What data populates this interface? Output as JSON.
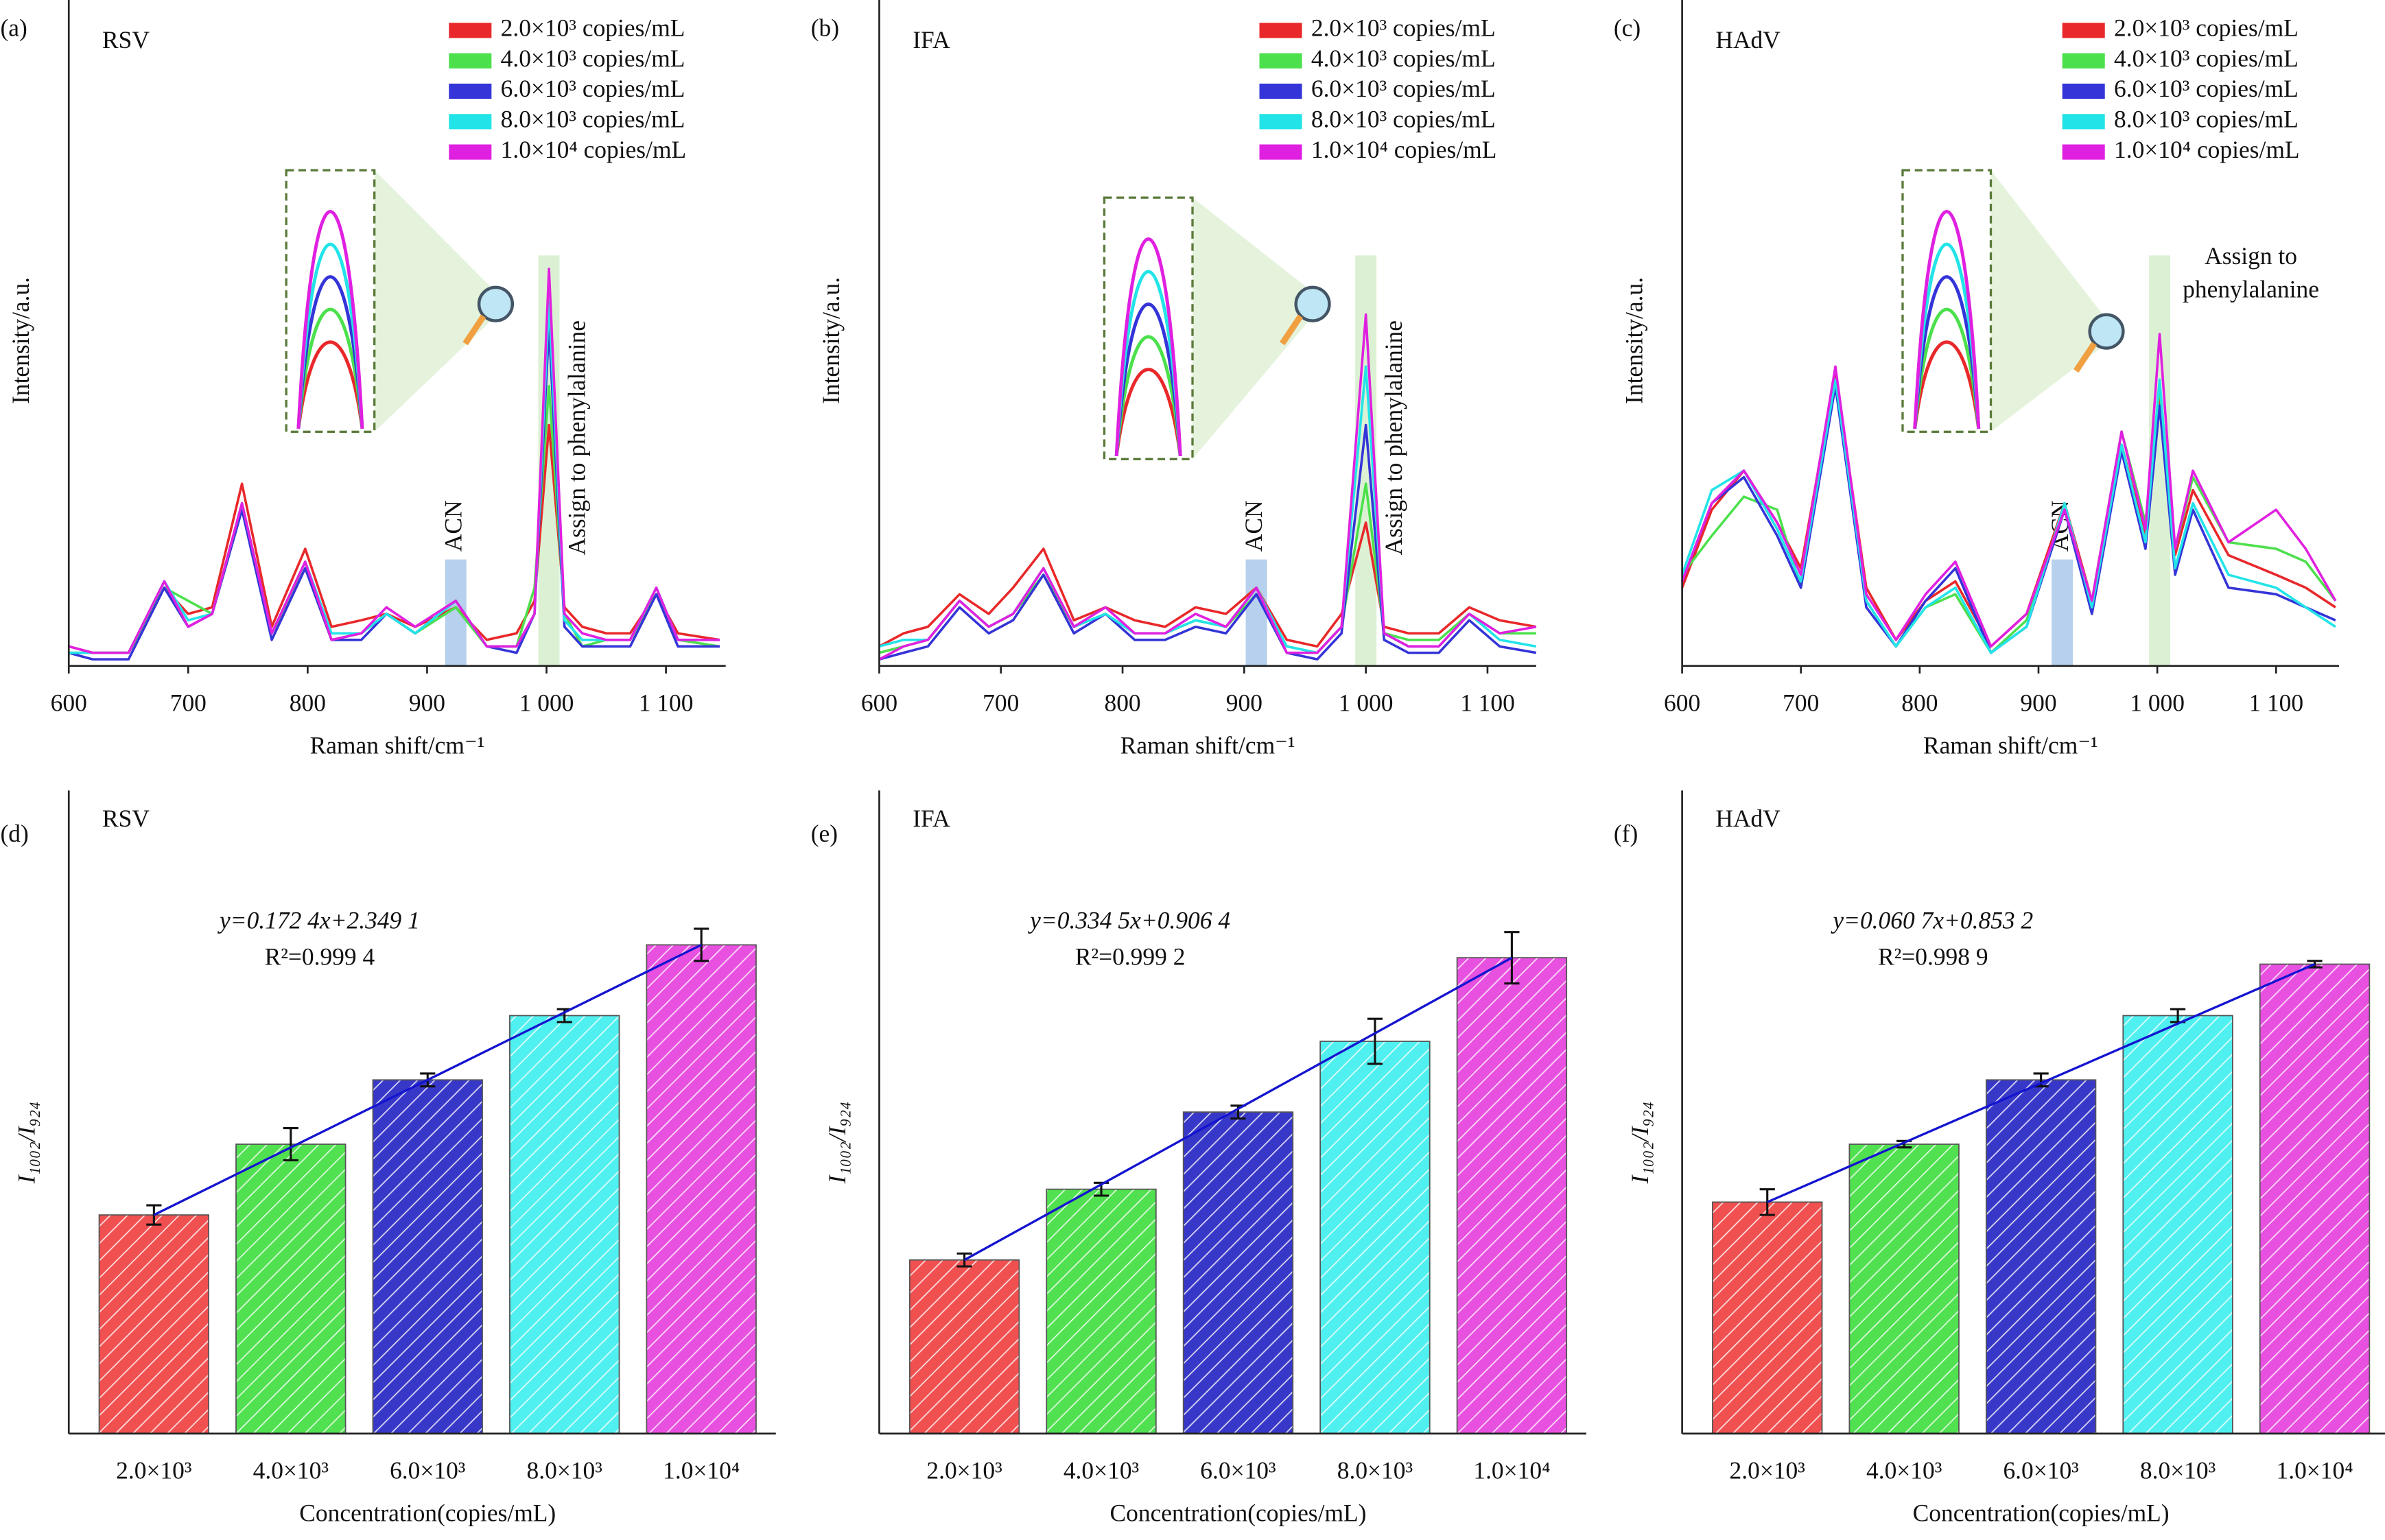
{
  "chart_data": [
    {
      "type": "line",
      "panel": "(a)",
      "title": "RSV",
      "xlabel": "Raman shift/cm⁻¹",
      "ylabel": "Intensity/a.u.",
      "xlim": [
        600,
        1150
      ],
      "xticks": [
        600,
        700,
        800,
        900,
        {
          "value": 1000,
          "label": "1 000"
        },
        {
          "value": 1100,
          "label": "1 100"
        }
      ],
      "ylim": [
        0,
        100
      ],
      "legend": "upper right",
      "annotations": [
        {
          "text": "ACN",
          "x": 924
        },
        {
          "text": "Assign to phenylalanine",
          "x": 1002
        }
      ],
      "x": [
        600,
        620,
        650,
        680,
        700,
        720,
        745,
        770,
        798,
        820,
        845,
        866,
        890,
        924,
        950,
        975,
        990,
        1002,
        1015,
        1030,
        1050,
        1070,
        1092,
        1110,
        1145
      ],
      "series": [
        {
          "name": "2.0×10³ copies/mL",
          "color": "#e8282a",
          "values": [
            3,
            2,
            2,
            12,
            8,
            9,
            28,
            6,
            18,
            6,
            7,
            8,
            6,
            9,
            4,
            5,
            10,
            37,
            9,
            6,
            5,
            5,
            11,
            5,
            4
          ]
        },
        {
          "name": "4.0×10³ copies/mL",
          "color": "#4ce04c",
          "values": [
            2,
            2,
            2,
            12,
            10,
            8,
            24,
            5,
            15,
            4,
            5,
            8,
            5,
            9,
            3,
            3,
            12,
            43,
            8,
            3,
            4,
            4,
            11,
            4,
            3
          ]
        },
        {
          "name": "6.0×10³ copies/mL",
          "color": "#3434d8",
          "values": [
            2,
            1,
            1,
            12,
            6,
            8,
            24,
            4,
            15,
            4,
            4,
            8,
            5,
            10,
            3,
            2,
            8,
            52,
            6,
            3,
            3,
            3,
            11,
            3,
            3
          ]
        },
        {
          "name": "8.0×10³ copies/mL",
          "color": "#22e4e8",
          "values": [
            2,
            2,
            2,
            13,
            7,
            8,
            25,
            5,
            16,
            5,
            5,
            8,
            5,
            10,
            3,
            3,
            8,
            56,
            7,
            4,
            4,
            4,
            12,
            4,
            4
          ]
        },
        {
          "name": "1.0×10⁴ copies/mL",
          "color": "#e020e0",
          "values": [
            3,
            2,
            2,
            13,
            6,
            8,
            25,
            5,
            16,
            4,
            5,
            9,
            6,
            10,
            3,
            3,
            8,
            61,
            8,
            5,
            4,
            4,
            12,
            4,
            4
          ]
        }
      ]
    },
    {
      "type": "line",
      "panel": "(b)",
      "title": "IFA",
      "xlabel": "Raman shift/cm⁻¹",
      "ylabel": "Intensity/a.u.",
      "xlim": [
        600,
        1140
      ],
      "xticks": [
        600,
        700,
        800,
        900,
        {
          "value": 1000,
          "label": "1 000"
        },
        {
          "value": 1100,
          "label": "1 100"
        }
      ],
      "ylim": [
        0,
        100
      ],
      "legend": "upper right",
      "annotations": [
        {
          "text": "ACN",
          "x": 910
        },
        {
          "text": "Assign to phenylalanine",
          "x": 1000
        }
      ],
      "x": [
        600,
        620,
        640,
        666,
        690,
        710,
        735,
        760,
        786,
        810,
        835,
        860,
        885,
        910,
        935,
        960,
        980,
        1000,
        1015,
        1035,
        1060,
        1085,
        1110,
        1140
      ],
      "series": [
        {
          "name": "2.0×10³ copies/mL",
          "color": "#e8282a",
          "values": [
            3,
            5,
            6,
            11,
            8,
            12,
            18,
            7,
            9,
            7,
            6,
            9,
            8,
            12,
            4,
            3,
            8,
            22,
            6,
            5,
            5,
            9,
            7,
            6
          ]
        },
        {
          "name": "4.0×10³ copies/mL",
          "color": "#4ce04c",
          "values": [
            2,
            3,
            4,
            10,
            6,
            8,
            14,
            6,
            8,
            5,
            5,
            7,
            6,
            11,
            3,
            2,
            6,
            28,
            5,
            4,
            4,
            8,
            5,
            5
          ]
        },
        {
          "name": "6.0×10³ copies/mL",
          "color": "#3434d8",
          "values": [
            1,
            2,
            3,
            9,
            5,
            7,
            14,
            5,
            8,
            4,
            4,
            6,
            5,
            11,
            2,
            1,
            5,
            37,
            4,
            2,
            2,
            7,
            3,
            2
          ]
        },
        {
          "name": "8.0×10³ copies/mL",
          "color": "#22e4e8",
          "values": [
            3,
            4,
            4,
            10,
            6,
            8,
            15,
            6,
            8,
            5,
            5,
            7,
            6,
            12,
            3,
            2,
            6,
            46,
            5,
            3,
            3,
            8,
            4,
            3
          ]
        },
        {
          "name": "1.0×10⁴ copies/mL",
          "color": "#e020e0",
          "values": [
            1,
            3,
            4,
            10,
            6,
            8,
            15,
            6,
            9,
            5,
            5,
            8,
            6,
            12,
            2,
            2,
            6,
            54,
            5,
            3,
            3,
            8,
            5,
            6
          ]
        }
      ]
    },
    {
      "type": "line",
      "panel": "(c)",
      "title": "HAdV",
      "xlabel": "Raman shift/cm⁻¹",
      "ylabel": "Intensity/a.u.",
      "xlim": [
        600,
        1153
      ],
      "xticks": [
        600,
        700,
        800,
        900,
        {
          "value": 1000,
          "label": "1 000"
        },
        {
          "value": 1100,
          "label": "1 100"
        }
      ],
      "ylim": [
        0,
        100
      ],
      "legend": "upper right",
      "annotations": [
        {
          "text": "ACN",
          "x": 920
        },
        {
          "text": [
            "Assign to",
            "phenylalanine"
          ],
          "x": 1002
        }
      ],
      "x": [
        600,
        625,
        652,
        680,
        700,
        729,
        755,
        780,
        805,
        830,
        860,
        890,
        922,
        945,
        970,
        990,
        1002,
        1015,
        1030,
        1060,
        1100,
        1125,
        1150
      ],
      "series": [
        {
          "name": "2.0×10³ copies/mL",
          "color": "#e8282a",
          "values": [
            12,
            24,
            30,
            22,
            15,
            45,
            12,
            4,
            10,
            13,
            3,
            8,
            25,
            10,
            34,
            20,
            42,
            17,
            27,
            17,
            14,
            12,
            9
          ]
        },
        {
          "name": "4.0×10³ copies/mL",
          "color": "#4ce04c",
          "values": [
            14,
            20,
            26,
            24,
            12,
            44,
            10,
            3,
            9,
            11,
            2,
            7,
            24,
            10,
            36,
            22,
            43,
            18,
            29,
            19,
            18,
            16,
            10
          ]
        },
        {
          "name": "6.0×10³ copies/mL",
          "color": "#3434d8",
          "values": [
            13,
            25,
            29,
            20,
            12,
            43,
            9,
            3,
            10,
            15,
            2,
            6,
            24,
            8,
            33,
            18,
            40,
            14,
            24,
            12,
            11,
            9,
            7
          ]
        },
        {
          "name": "8.0×10³ copies/mL",
          "color": "#22e4e8",
          "values": [
            14,
            27,
            30,
            21,
            13,
            44,
            10,
            3,
            9,
            12,
            2,
            6,
            25,
            9,
            34,
            19,
            44,
            15,
            25,
            14,
            12,
            9,
            6
          ]
        },
        {
          "name": "1.0×10⁴ copies/mL",
          "color": "#e020e0",
          "values": [
            13,
            25,
            30,
            22,
            14,
            46,
            11,
            4,
            11,
            16,
            3,
            8,
            24,
            10,
            36,
            21,
            51,
            18,
            30,
            19,
            24,
            18,
            10
          ]
        }
      ]
    },
    {
      "type": "bar",
      "panel": "(d)",
      "title": "RSV",
      "xlabel": "Concentration(copies/mL)",
      "ylabel": "I₁₀₀₂/I₉₂₄",
      "equation": "y=0.172 4x+2.349 1",
      "r2": "R²=0.999 4",
      "ylim": [
        0,
        100
      ],
      "fit_line": true,
      "categories": [
        "2.0×10³",
        "4.0×10³",
        "6.0×10³",
        "8.0×10³",
        "1.0×10⁴"
      ],
      "values": [
        34,
        45,
        55,
        65,
        76
      ],
      "errors": [
        1.5,
        2.5,
        1,
        1,
        2.5
      ],
      "colors": [
        "#f05050",
        "#50e050",
        "#3838c8",
        "#50f0f0",
        "#e850e0"
      ]
    },
    {
      "type": "bar",
      "panel": "(e)",
      "title": "IFA",
      "xlabel": "Concentration(copies/mL)",
      "ylabel": "I₁₀₀₂/I₉₂₄",
      "equation": "y=0.334 5x+0.906 4",
      "r2": "R²=0.999 2",
      "ylim": [
        0,
        100
      ],
      "fit_line": true,
      "categories": [
        "2.0×10³",
        "4.0×10³",
        "6.0×10³",
        "8.0×10³",
        "1.0×10⁴"
      ],
      "values": [
        27,
        38,
        50,
        61,
        74
      ],
      "errors": [
        1,
        1,
        1,
        3.5,
        4
      ],
      "colors": [
        "#f05050",
        "#50e050",
        "#3838c8",
        "#50f0f0",
        "#e850e0"
      ]
    },
    {
      "type": "bar",
      "panel": "(f)",
      "title": "HAdV",
      "xlabel": "Concentration(copies/mL)",
      "ylabel": "I₁₀₀₂/I₉₂₄",
      "equation": "y=0.060 7x+0.853 2",
      "r2": "R²=0.998 9",
      "ylim": [
        0,
        100
      ],
      "fit_line": true,
      "categories": [
        "2.0×10³",
        "4.0×10³",
        "6.0×10³",
        "8.0×10³",
        "1.0×10⁴"
      ],
      "values": [
        36,
        45,
        55,
        65,
        73
      ],
      "errors": [
        2,
        0.5,
        1,
        1,
        0.5
      ],
      "colors": [
        "#f05050",
        "#50e050",
        "#3838c8",
        "#50f0f0",
        "#e850e0"
      ]
    }
  ]
}
